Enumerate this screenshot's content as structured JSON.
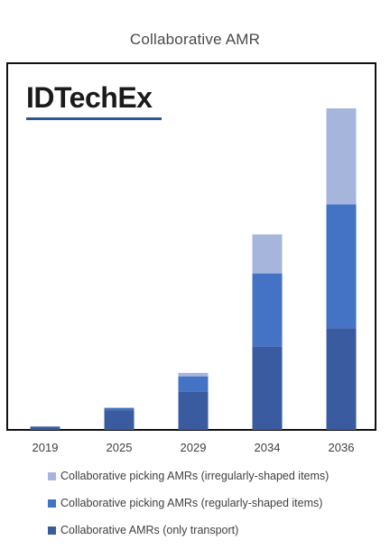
{
  "brand": {
    "logo_text": "IDTechEx",
    "logo_underline_color": "#2f5597"
  },
  "chart_data": {
    "type": "bar",
    "stacked": true,
    "title": "Collaborative AMR",
    "xlabel": "",
    "ylabel": "",
    "categories": [
      "2019",
      "2025",
      "2029",
      "2034",
      "2036"
    ],
    "series": [
      {
        "name": "Collaborative AMRs (only transport)",
        "color": "#3a5ba0",
        "values": [
          1.2,
          7,
          13.5,
          29.5,
          36
        ]
      },
      {
        "name": "Collaborative picking AMRs (regularly-shaped items)",
        "color": "#4472c4",
        "values": [
          0,
          0.8,
          5.5,
          26,
          44
        ]
      },
      {
        "name": "Collaborative picking AMRs (irregularly-shaped items)",
        "color": "#a6b5dc",
        "values": [
          0,
          0,
          1.2,
          13.8,
          34
        ]
      }
    ],
    "legend_order": [
      2,
      1,
      0
    ],
    "legend_position": "bottom",
    "ylim": [
      0,
      130
    ],
    "grid": false,
    "y_axis_visible": false
  }
}
